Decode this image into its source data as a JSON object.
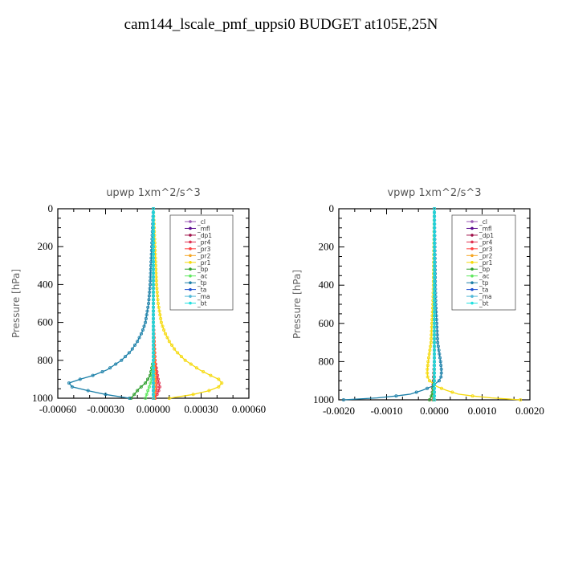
{
  "figure": {
    "title": "cam144_lscale_pmf_uppsi0  BUDGET at105E,25N"
  },
  "chart_data": [
    {
      "type": "line",
      "title": "upwp   1xm^2/s^3",
      "ylabel": "Pressure [hPa]",
      "ylim": [
        1000,
        0
      ],
      "xlim": [
        -0.0006,
        0.0006
      ],
      "xticks": [
        "-0.00060",
        "-0.00030",
        "0.00000",
        "0.00030",
        "0.00060"
      ],
      "xtick_values": [
        -0.0006,
        -0.0003,
        0,
        0.0003,
        0.0006
      ],
      "yticks": [
        "0",
        "200",
        "400",
        "600",
        "800",
        "1000"
      ],
      "ytick_values": [
        0,
        200,
        400,
        600,
        800,
        1000
      ],
      "legend_position": "top-right",
      "legend": [
        "_cl",
        "_mfl",
        "_dp1",
        "_pr4",
        "_pr3",
        "_pr2",
        "_pr1",
        "_bp",
        "_ac",
        "_tp",
        "_ta",
        "_ma",
        "_bt"
      ],
      "series": [
        {
          "name": "_cl",
          "color": "#9b59b6",
          "pressure": [
            0,
            200,
            400,
            600,
            800,
            900,
            1000
          ],
          "values": [
            0,
            0,
            0,
            0,
            0,
            0,
            0
          ]
        },
        {
          "name": "_mfl",
          "color": "#5b0a8f",
          "pressure": [
            0,
            200,
            400,
            600,
            800,
            900,
            1000
          ],
          "values": [
            0,
            0,
            0,
            0,
            0,
            0,
            0
          ]
        },
        {
          "name": "_dp1",
          "color": "#a0104a",
          "pressure": [
            0,
            200,
            400,
            600,
            800,
            900,
            1000
          ],
          "values": [
            0,
            0,
            0,
            0,
            0,
            0,
            0
          ]
        },
        {
          "name": "_pr4",
          "color": "#e03050",
          "pressure": [
            0,
            200,
            400,
            600,
            700,
            800,
            850,
            900,
            940,
            970,
            1000
          ],
          "values": [
            0,
            0,
            0,
            0,
            5e-06,
            1e-05,
            2e-05,
            3e-05,
            4e-05,
            3e-05,
            1e-05
          ]
        },
        {
          "name": "_pr3",
          "color": "#ff4040",
          "pressure": [
            0,
            200,
            400,
            600,
            800,
            900,
            950,
            1000
          ],
          "values": [
            0,
            0,
            0,
            0,
            1e-05,
            2e-05,
            2e-05,
            1e-05
          ]
        },
        {
          "name": "_pr2",
          "color": "#f5a623",
          "pressure": [
            0,
            200,
            400,
            600,
            800,
            900,
            1000
          ],
          "values": [
            0,
            0,
            0,
            0,
            5e-06,
            1e-05,
            5e-06
          ]
        },
        {
          "name": "_pr1",
          "color": "#f5d90a",
          "pressure": [
            0,
            100,
            200,
            300,
            400,
            500,
            550,
            600,
            650,
            700,
            750,
            800,
            850,
            880,
            900,
            920,
            940,
            960,
            980,
            1000
          ],
          "values": [
            0,
            5e-06,
            1e-05,
            1.5e-05,
            2e-05,
            3e-05,
            4e-05,
            5e-05,
            7e-05,
            0.0001,
            0.00014,
            0.0002,
            0.00029,
            0.00036,
            0.00041,
            0.00043,
            0.00041,
            0.00035,
            0.00025,
            0.0001
          ]
        },
        {
          "name": "_bp",
          "color": "#2e9e2e",
          "pressure": [
            0,
            400,
            600,
            800,
            880,
            920,
            950,
            980,
            1000
          ],
          "values": [
            0,
            0,
            0,
            0,
            -2e-05,
            -5e-05,
            -9e-05,
            -0.00012,
            -0.00014
          ]
        },
        {
          "name": "_ac",
          "color": "#5ee85e",
          "pressure": [
            0,
            400,
            600,
            800,
            900,
            950,
            1000
          ],
          "values": [
            0,
            0,
            0,
            0,
            -1e-05,
            -3e-05,
            -5e-05
          ]
        },
        {
          "name": "_tp",
          "color": "#1a7fa8",
          "pressure": [
            0,
            100,
            200,
            300,
            400,
            500,
            550,
            600,
            650,
            700,
            750,
            800,
            850,
            880,
            900,
            920,
            940,
            960,
            980,
            1000
          ],
          "values": [
            0,
            -5e-06,
            -1e-05,
            -1.5e-05,
            -2e-05,
            -3e-05,
            -4e-05,
            -5e-05,
            -7e-05,
            -0.0001,
            -0.00014,
            -0.0002,
            -0.00029,
            -0.00038,
            -0.00046,
            -0.00053,
            -0.00051,
            -0.00041,
            -0.0003,
            -0.00015
          ]
        },
        {
          "name": "_ta",
          "color": "#1f4fd0",
          "pressure": [
            0,
            400,
            600,
            800,
            900,
            950,
            1000
          ],
          "values": [
            0,
            0,
            0,
            0,
            0,
            0,
            0
          ]
        },
        {
          "name": "_ma",
          "color": "#4fb8d8",
          "pressure": [
            0,
            400,
            600,
            800,
            900,
            1000
          ],
          "values": [
            0,
            0,
            0,
            0,
            0,
            0
          ]
        },
        {
          "name": "_bt",
          "color": "#22e0e0",
          "pressure": [
            0,
            400,
            600,
            800,
            900,
            1000
          ],
          "values": [
            0,
            0,
            0,
            0,
            0,
            0
          ]
        }
      ]
    },
    {
      "type": "line",
      "title": "vpwp   1xm^2/s^3",
      "ylabel": "Pressure [hPa]",
      "ylim": [
        1000,
        0
      ],
      "xlim": [
        -0.002,
        0.002
      ],
      "xticks": [
        "-0.0020",
        "-0.0010",
        "0.0000",
        "0.0010",
        "0.0020"
      ],
      "xtick_values": [
        -0.002,
        -0.001,
        0,
        0.001,
        0.002
      ],
      "yticks": [
        "0",
        "200",
        "400",
        "600",
        "800",
        "1000"
      ],
      "ytick_values": [
        0,
        200,
        400,
        600,
        800,
        1000
      ],
      "legend_position": "top-right",
      "legend": [
        "_cl",
        "_mfl",
        "_dp1",
        "_pr4",
        "_pr3",
        "_pr2",
        "_pr1",
        "_bp",
        "_ac",
        "_tp",
        "_ta",
        "_ma",
        "_bt"
      ],
      "series": [
        {
          "name": "_cl",
          "color": "#9b59b6",
          "pressure": [
            0,
            200,
            400,
            600,
            800,
            900,
            1000
          ],
          "values": [
            0,
            0,
            0,
            0,
            0,
            0,
            0
          ]
        },
        {
          "name": "_mfl",
          "color": "#5b0a8f",
          "pressure": [
            0,
            200,
            400,
            600,
            800,
            900,
            1000
          ],
          "values": [
            0,
            0,
            0,
            0,
            0,
            0,
            0
          ]
        },
        {
          "name": "_dp1",
          "color": "#a0104a",
          "pressure": [
            0,
            200,
            400,
            600,
            800,
            900,
            1000
          ],
          "values": [
            0,
            0,
            0,
            0,
            0,
            0,
            0
          ]
        },
        {
          "name": "_pr4",
          "color": "#e03050",
          "pressure": [
            0,
            400,
            600,
            800,
            900,
            960,
            1000
          ],
          "values": [
            0,
            0,
            0,
            0,
            -2e-05,
            -4e-05,
            -3e-05
          ]
        },
        {
          "name": "_pr3",
          "color": "#ff4040",
          "pressure": [
            0,
            400,
            600,
            800,
            900,
            1000
          ],
          "values": [
            0,
            0,
            0,
            0,
            0,
            0
          ]
        },
        {
          "name": "_pr2",
          "color": "#f5a623",
          "pressure": [
            0,
            400,
            600,
            800,
            900,
            1000
          ],
          "values": [
            0,
            0,
            0,
            0,
            0,
            0
          ]
        },
        {
          "name": "_pr1",
          "color": "#f5d90a",
          "pressure": [
            0,
            200,
            400,
            500,
            600,
            700,
            750,
            800,
            850,
            880,
            900,
            930,
            950,
            970,
            980,
            990,
            1000
          ],
          "values": [
            0,
            -1e-05,
            -2e-05,
            -3e-05,
            -5e-05,
            -7e-05,
            -0.0001,
            -0.00013,
            -0.00015,
            -0.00014,
            -0.0001,
            5e-05,
            0.00025,
            0.0005,
            0.0008,
            0.0012,
            0.0018
          ]
        },
        {
          "name": "_bp",
          "color": "#2e9e2e",
          "pressure": [
            0,
            400,
            600,
            800,
            900,
            950,
            980,
            1000
          ],
          "values": [
            0,
            0,
            0,
            0,
            -1e-05,
            -3e-05,
            -6e-05,
            -0.0001
          ]
        },
        {
          "name": "_ac",
          "color": "#5ee85e",
          "pressure": [
            0,
            400,
            600,
            800,
            900,
            1000
          ],
          "values": [
            0,
            0,
            0,
            0,
            0,
            -2e-05
          ]
        },
        {
          "name": "_tp",
          "color": "#1a7fa8",
          "pressure": [
            0,
            200,
            400,
            500,
            600,
            700,
            750,
            800,
            850,
            880,
            900,
            930,
            950,
            970,
            980,
            990,
            1000
          ],
          "values": [
            0,
            1e-05,
            2e-05,
            3e-05,
            5e-05,
            7e-05,
            0.0001,
            0.00013,
            0.00015,
            0.00014,
            0.0001,
            -5e-05,
            -0.00025,
            -0.0005,
            -0.0008,
            -0.0012,
            -0.0019
          ]
        },
        {
          "name": "_ta",
          "color": "#1f4fd0",
          "pressure": [
            0,
            400,
            600,
            800,
            900,
            1000
          ],
          "values": [
            0,
            0,
            0,
            0,
            0,
            0
          ]
        },
        {
          "name": "_ma",
          "color": "#4fb8d8",
          "pressure": [
            0,
            400,
            600,
            800,
            900,
            1000
          ],
          "values": [
            0,
            0,
            0,
            0,
            0,
            0
          ]
        },
        {
          "name": "_bt",
          "color": "#22e0e0",
          "pressure": [
            0,
            400,
            600,
            800,
            900,
            1000
          ],
          "values": [
            0,
            0,
            0,
            0,
            0,
            0
          ]
        }
      ]
    }
  ]
}
